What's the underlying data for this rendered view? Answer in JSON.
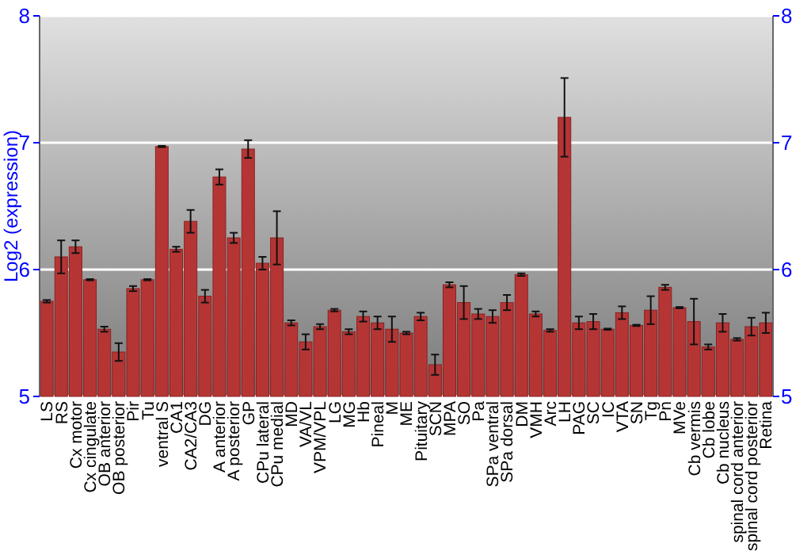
{
  "chart_data": {
    "type": "bar",
    "ylabel": "Log2 (expression)",
    "categories": [
      "LS",
      "RS",
      "Cx motor",
      "Cx cingulate",
      "OB anterior",
      "OB posterior",
      "Pir",
      "Tu",
      "ventral S",
      "CA1",
      "CA2/CA3",
      "DG",
      "A anterior",
      "A posterior",
      "GP",
      "CPu lateral",
      "CPu medial",
      "MD",
      "VA/VL",
      "VPM/VPL",
      "LG",
      "MG",
      "Hb",
      "Pineal",
      "M",
      "ME",
      "Pituitary",
      "SCN",
      "MPA",
      "SO",
      "Pa",
      "SPa ventral",
      "SPa dorsal",
      "DM",
      "VMH",
      "Arc",
      "LH",
      "PAG",
      "SC",
      "IC",
      "VTA",
      "SN",
      "Tg",
      "Pn",
      "MVe",
      "Cb vermis",
      "Cb lobe",
      "Cb nucleus",
      "spinal cord anterior",
      "spinal cord posterior",
      "Retina"
    ],
    "values": [
      5.75,
      6.1,
      6.18,
      5.92,
      5.53,
      5.35,
      5.85,
      5.92,
      6.97,
      6.16,
      6.38,
      5.79,
      6.73,
      6.25,
      6.95,
      6.05,
      6.25,
      5.58,
      5.43,
      5.55,
      5.68,
      5.51,
      5.63,
      5.58,
      5.53,
      5.5,
      5.63,
      5.25,
      5.88,
      5.74,
      5.65,
      5.63,
      5.74,
      5.96,
      5.65,
      5.52,
      7.2,
      5.58,
      5.59,
      5.53,
      5.66,
      5.56,
      5.68,
      5.86,
      5.7,
      5.59,
      5.39,
      5.58,
      5.45,
      5.55,
      5.58
    ],
    "errors": [
      0.01,
      0.13,
      0.05,
      0.005,
      0.02,
      0.07,
      0.02,
      0.005,
      0.005,
      0.02,
      0.09,
      0.05,
      0.06,
      0.04,
      0.07,
      0.05,
      0.21,
      0.02,
      0.06,
      0.02,
      0.01,
      0.02,
      0.04,
      0.05,
      0.1,
      0.01,
      0.03,
      0.08,
      0.02,
      0.13,
      0.04,
      0.05,
      0.06,
      0.01,
      0.02,
      0.01,
      0.31,
      0.05,
      0.06,
      0.005,
      0.05,
      0.005,
      0.11,
      0.02,
      0.005,
      0.18,
      0.02,
      0.07,
      0.01,
      0.07,
      0.08
    ],
    "color": "#b53535",
    "ylim": [
      5,
      8
    ],
    "yticks": [
      5,
      6,
      7,
      8
    ],
    "y2lim": [
      5,
      8
    ],
    "y2ticks": [
      5,
      6,
      7,
      8
    ],
    "grid": "y"
  }
}
